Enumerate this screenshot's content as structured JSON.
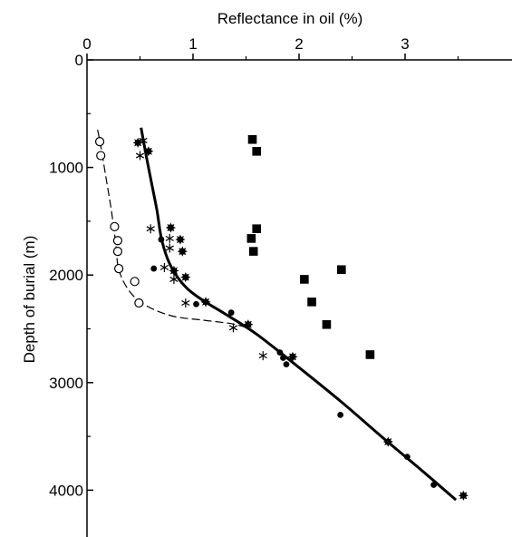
{
  "chart_data": {
    "type": "scatter",
    "xlabel": "Reflectance in oil (%)",
    "ylabel": "Depth of burial (m)",
    "xlim": [
      0,
      4
    ],
    "ylim": [
      0,
      4500
    ],
    "x_axis_position": "top",
    "y_axis_inverted": true,
    "x_ticks": [
      0,
      1,
      2,
      3
    ],
    "y_ticks": [
      0,
      1000,
      2000,
      3000,
      4000
    ],
    "x_tick_labels": [
      "0",
      "1",
      "2",
      "3"
    ],
    "y_tick_labels": [
      "0",
      "1000",
      "2000",
      "3000",
      "4000"
    ],
    "grid": false,
    "series": [
      {
        "marker": "open-circle",
        "points": [
          [
            0.12,
            760
          ],
          [
            0.13,
            890
          ],
          [
            0.26,
            1550
          ],
          [
            0.29,
            1680
          ],
          [
            0.29,
            1780
          ],
          [
            0.3,
            1940
          ],
          [
            0.45,
            2060
          ],
          [
            0.49,
            2260
          ]
        ]
      },
      {
        "marker": "filled-circle",
        "points": [
          [
            0.63,
            1940
          ],
          [
            0.7,
            1670
          ],
          [
            1.03,
            2270
          ],
          [
            1.36,
            2350
          ],
          [
            1.82,
            2720
          ],
          [
            1.85,
            2770
          ],
          [
            1.88,
            2830
          ],
          [
            2.39,
            3300
          ],
          [
            3.02,
            3690
          ],
          [
            3.27,
            3950
          ]
        ]
      },
      {
        "marker": "asterisk",
        "points": [
          [
            0.53,
            750
          ],
          [
            0.5,
            890
          ],
          [
            0.6,
            1570
          ],
          [
            0.78,
            1660
          ],
          [
            0.78,
            1750
          ],
          [
            0.73,
            1930
          ],
          [
            0.82,
            2040
          ],
          [
            0.93,
            2260
          ],
          [
            1.38,
            2490
          ],
          [
            1.66,
            2750
          ]
        ]
      },
      {
        "marker": "starburst",
        "points": [
          [
            0.48,
            770
          ],
          [
            0.58,
            850
          ],
          [
            0.79,
            1560
          ],
          [
            0.88,
            1670
          ],
          [
            0.9,
            1780
          ],
          [
            0.82,
            1960
          ],
          [
            0.93,
            2020
          ],
          [
            1.12,
            2250
          ],
          [
            1.52,
            2460
          ],
          [
            1.94,
            2760
          ],
          [
            2.84,
            3550
          ],
          [
            3.55,
            4050
          ]
        ]
      },
      {
        "marker": "filled-square",
        "points": [
          [
            1.56,
            740
          ],
          [
            1.6,
            850
          ],
          [
            1.6,
            1570
          ],
          [
            1.55,
            1660
          ],
          [
            1.57,
            1780
          ],
          [
            2.4,
            1950
          ],
          [
            2.05,
            2040
          ],
          [
            2.12,
            2250
          ],
          [
            2.26,
            2460
          ],
          [
            2.67,
            2740
          ]
        ]
      }
    ],
    "trend_lines": [
      {
        "style": "solid",
        "points": [
          [
            0.51,
            630
          ],
          [
            0.56,
            900
          ],
          [
            0.61,
            1150
          ],
          [
            0.66,
            1400
          ],
          [
            0.7,
            1650
          ],
          [
            0.76,
            1850
          ],
          [
            0.84,
            2000
          ],
          [
            0.95,
            2130
          ],
          [
            1.1,
            2240
          ],
          [
            1.3,
            2360
          ],
          [
            1.6,
            2550
          ],
          [
            2.0,
            2860
          ],
          [
            2.4,
            3180
          ],
          [
            2.8,
            3520
          ],
          [
            3.15,
            3810
          ],
          [
            3.48,
            4090
          ]
        ]
      },
      {
        "style": "dashed",
        "points": [
          [
            0.1,
            650
          ],
          [
            0.13,
            800
          ],
          [
            0.18,
            1100
          ],
          [
            0.23,
            1400
          ],
          [
            0.27,
            1700
          ],
          [
            0.3,
            1950
          ],
          [
            0.4,
            2150
          ],
          [
            0.55,
            2280
          ],
          [
            0.8,
            2380
          ],
          [
            1.1,
            2420
          ],
          [
            1.35,
            2450
          ],
          [
            1.48,
            2480
          ]
        ]
      }
    ]
  }
}
